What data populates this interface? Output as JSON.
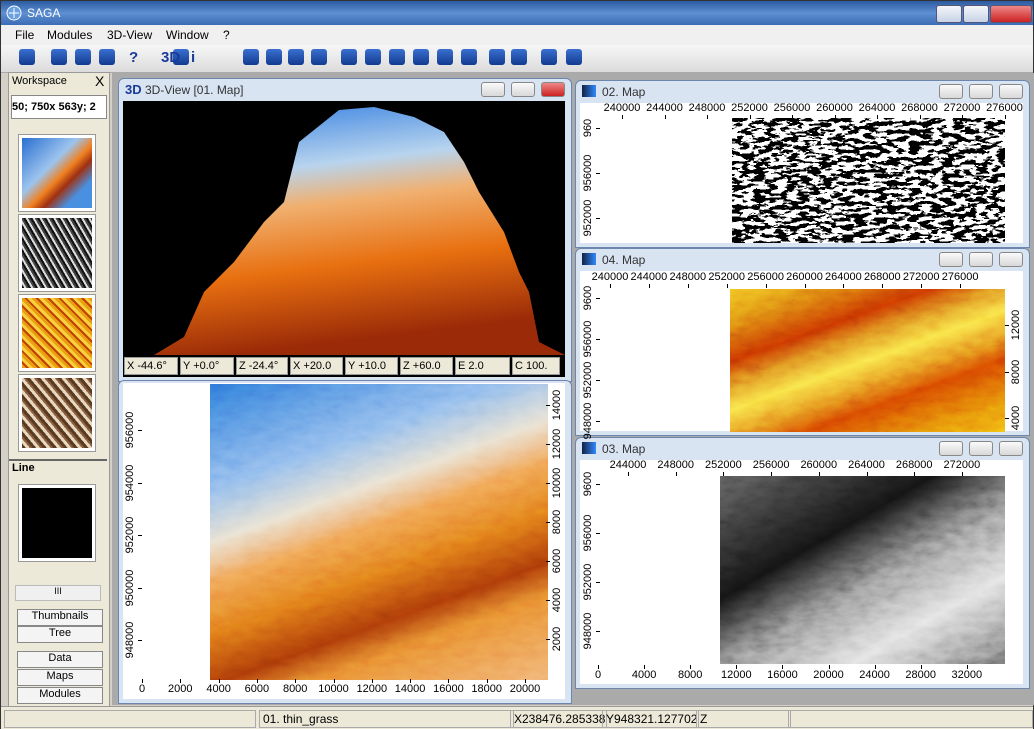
{
  "app": {
    "title": "SAGA"
  },
  "menu": [
    "File",
    "Modules",
    "3D-View",
    "Window",
    "?"
  ],
  "toolbar_glyphs": [
    "?",
    "3D",
    "i"
  ],
  "workspace": {
    "title": "Workspace",
    "close": "X",
    "info": "50; 750x 563y; 2",
    "group": "Line",
    "scroll": "III",
    "tabs_top": [
      "Thumbnails",
      "Tree"
    ],
    "tabs_bottom": [
      "Data",
      "Maps",
      "Modules"
    ]
  },
  "windows": [
    {
      "title": "3D-View [01. Map]",
      "icon": "3D",
      "status": [
        "X -44.6°",
        "Y +0.0°",
        "Z -24.4°",
        "X +20.0",
        "Y +10.0",
        "Z +60.0",
        "E 2.0",
        "C 100."
      ]
    },
    {
      "left_ticks": [
        956000,
        954000,
        952000,
        950000,
        948000
      ],
      "right_ticks": [
        14000,
        12000,
        10000,
        8000,
        6000,
        4000,
        2000
      ],
      "bottom_ticks": [
        0,
        2000,
        4000,
        6000,
        8000,
        10000,
        12000,
        14000,
        16000,
        18000,
        20000
      ]
    },
    {
      "title": "02. Map",
      "top_ticks": [
        240000,
        244000,
        248000,
        252000,
        256000,
        260000,
        264000,
        268000,
        272000,
        276000
      ],
      "left_ticks": [
        "960",
        956000,
        952000
      ]
    },
    {
      "title": "04. Map",
      "top_ticks": [
        240000,
        244000,
        248000,
        252000,
        256000,
        260000,
        264000,
        268000,
        272000,
        276000
      ],
      "left_ticks": [
        "9600",
        956000,
        952000,
        948000
      ],
      "right_ticks": [
        12000,
        8000,
        4000
      ]
    },
    {
      "title": "03. Map",
      "top_ticks": [
        244000,
        248000,
        252000,
        256000,
        260000,
        264000,
        268000,
        272000
      ],
      "left_ticks": [
        "9600",
        956000,
        952000,
        948000
      ],
      "bottom_ticks": [
        0,
        4000,
        8000,
        12000,
        16000,
        20000,
        24000,
        28000,
        32000
      ]
    }
  ],
  "status_bar": [
    "01. thin_grass",
    "X238476.285338",
    "Y948321.127702",
    "Z"
  ]
}
